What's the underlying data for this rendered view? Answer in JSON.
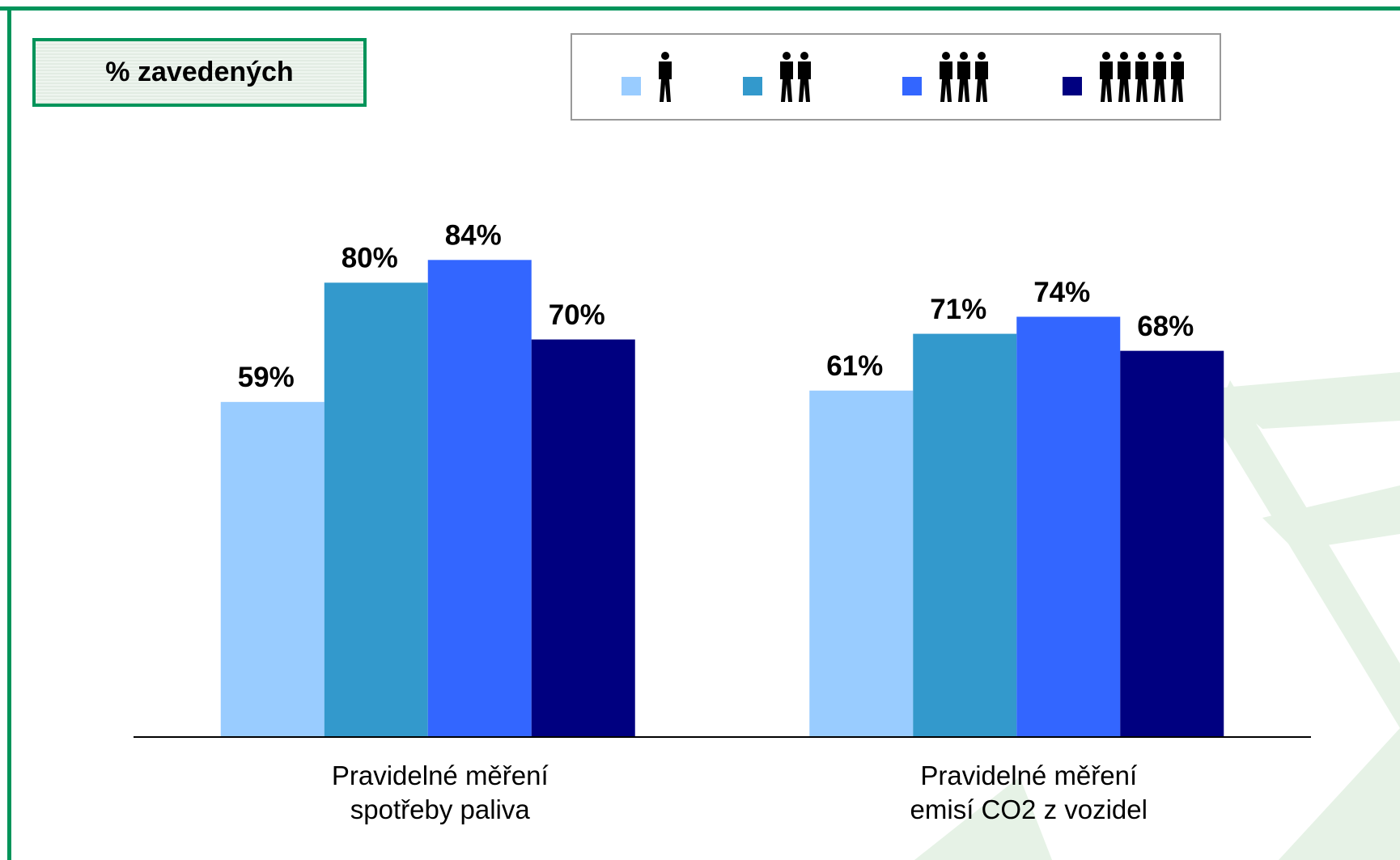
{
  "chart_data": {
    "type": "bar",
    "ylabel": "% zavedených",
    "categories": [
      "Pravidelné měření\n spotřeby paliva",
      "Pravidelné měření\nemisí CO2 z vozidel"
    ],
    "series": [
      {
        "color": "#99ccff",
        "values": [
          59,
          61
        ],
        "value_labels": [
          "59%",
          "61%"
        ]
      },
      {
        "color": "#3399cc",
        "values": [
          80,
          71
        ],
        "value_labels": [
          "80%",
          "71%"
        ]
      },
      {
        "color": "#3366ff",
        "values": [
          84,
          74
        ],
        "value_labels": [
          "84%",
          "74%"
        ]
      },
      {
        "color": "#000080",
        "values": [
          70,
          68
        ],
        "value_labels": [
          "70%",
          "68%"
        ]
      }
    ],
    "ylim": [
      0,
      100
    ]
  }
}
